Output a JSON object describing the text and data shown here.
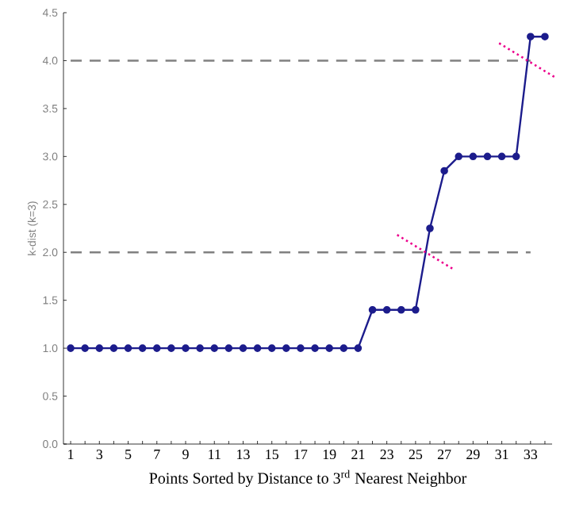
{
  "chart_data": {
    "type": "line",
    "xlabel": "Points Sorted by Distance to 3$^{rd}$ Nearest Neighbor",
    "ylabel": "k-dist (k=3)",
    "categories": [
      "1",
      null,
      "3",
      null,
      "5",
      null,
      "7",
      null,
      "9",
      null,
      "11",
      null,
      "13",
      null,
      "15",
      null,
      "17",
      null,
      "19",
      null,
      "21",
      null,
      "23",
      null,
      "25",
      null,
      "27",
      null,
      "29",
      null,
      "31",
      null,
      "33",
      null
    ],
    "series": [
      {
        "color": "#1c1c8c",
        "values": [
          1.0,
          1.0,
          1.0,
          1.0,
          1.0,
          1.0,
          1.0,
          1.0,
          1.0,
          1.0,
          1.0,
          1.0,
          1.0,
          1.0,
          1.0,
          1.0,
          1.0,
          1.0,
          1.0,
          1.0,
          1.0,
          1.4,
          1.4,
          1.4,
          1.4,
          2.25,
          2.85,
          3.0,
          3.0,
          3.0,
          3.0,
          3.0,
          4.25,
          4.25
        ]
      }
    ],
    "ylim": [
      0,
      4.5
    ],
    "yticks": [
      {
        "value": 0,
        "label": "0.0"
      },
      {
        "value": 0.5,
        "label": "0.5"
      },
      {
        "value": 1,
        "label": "1.0"
      },
      {
        "value": 1.5,
        "label": "1.5"
      },
      {
        "value": 2,
        "label": "2.0"
      },
      {
        "value": 2.5,
        "label": "2.5"
      },
      {
        "value": 3,
        "label": "3.0"
      },
      {
        "value": 3.5,
        "label": "3.5"
      },
      {
        "value": 4,
        "label": "4.0"
      },
      {
        "value": 4.5,
        "label": "4.5"
      }
    ],
    "ref_lines": [
      {
        "axis": "y",
        "value": 2,
        "color": "#808080",
        "line_style": "dashed"
      },
      {
        "axis": "y",
        "value": 4,
        "color": "#808080",
        "line_style": "dashed"
      }
    ],
    "marker": "circle",
    "line_style": "solid",
    "grid": false
  }
}
